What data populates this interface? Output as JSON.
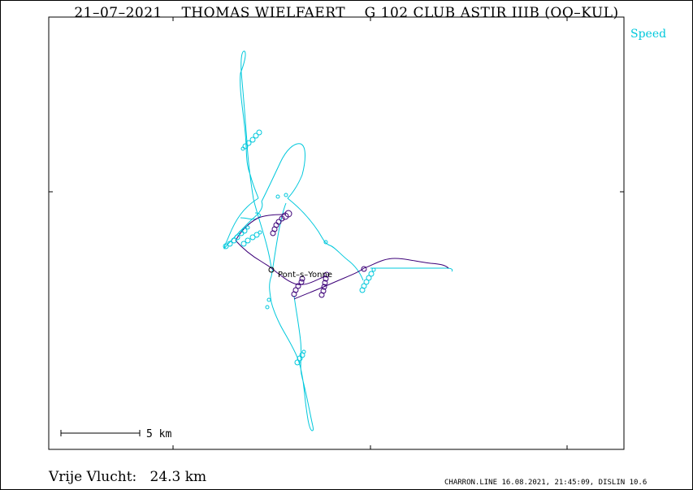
{
  "title": "21–07–2021    THOMAS WIELFAERT    G 102 CLUB ASTIR IIIB (OO–KUL)",
  "legend": {
    "label": "Speed"
  },
  "scale": {
    "label": "5 km"
  },
  "place": {
    "label": "Pont–s–Yonne"
  },
  "distance": {
    "label": "Vrije Vlucht:",
    "value": "24.3 km"
  },
  "footer": "CHARRON.LINE 16.08.2021, 21:45:09, DISLIN 10.6",
  "colors": {
    "track_fast": "#00c8dc",
    "track_slow": "#3c0078",
    "frame": "#000000"
  }
}
